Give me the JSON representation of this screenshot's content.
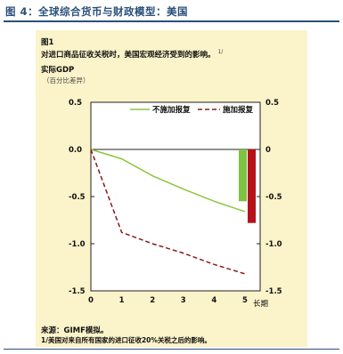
{
  "header": {
    "title": "图 4：全球综合货币与财政模型：美国"
  },
  "chart_data": {
    "type": "line",
    "figure_label": "图1",
    "title": "对进口商品征收关税时，美国宏观经济受到的影响。",
    "title_note": "1/",
    "ylabel": "实际GDP",
    "yunit": "（百分比差异）",
    "x": [
      0,
      1,
      2,
      3,
      4,
      5
    ],
    "x_ticks": [
      "0",
      "1",
      "2",
      "3",
      "4",
      "5"
    ],
    "x_extra_label": "长期",
    "ylim": [
      -1.5,
      0.5
    ],
    "y_ticks": [
      "0.5",
      "0.0",
      "-0.5",
      "-1.0",
      "-1.5"
    ],
    "y_ticks_right": [
      "0.5",
      "0",
      "-0.5",
      "-1.0",
      "-1.5"
    ],
    "series": [
      {
        "name": "不施加报复",
        "style": "solid",
        "color": "#8cc63f",
        "values": [
          0.0,
          -0.1,
          -0.28,
          -0.42,
          -0.55,
          -0.66
        ]
      },
      {
        "name": "施加报复",
        "style": "dashed",
        "color": "#8b1a1a",
        "values": [
          0.0,
          -0.88,
          -1.0,
          -1.1,
          -1.22,
          -1.32
        ]
      }
    ],
    "long_run": [
      {
        "name": "不施加报复",
        "value": -0.55,
        "color": "#7dc242"
      },
      {
        "name": "施加报复",
        "value": -0.78,
        "color": "#b5121b"
      }
    ]
  },
  "footer": {
    "source": "来源：GIMF模拟。",
    "note": "1/美国对来自所有国家的进口征收20%关税之后的影响。"
  }
}
